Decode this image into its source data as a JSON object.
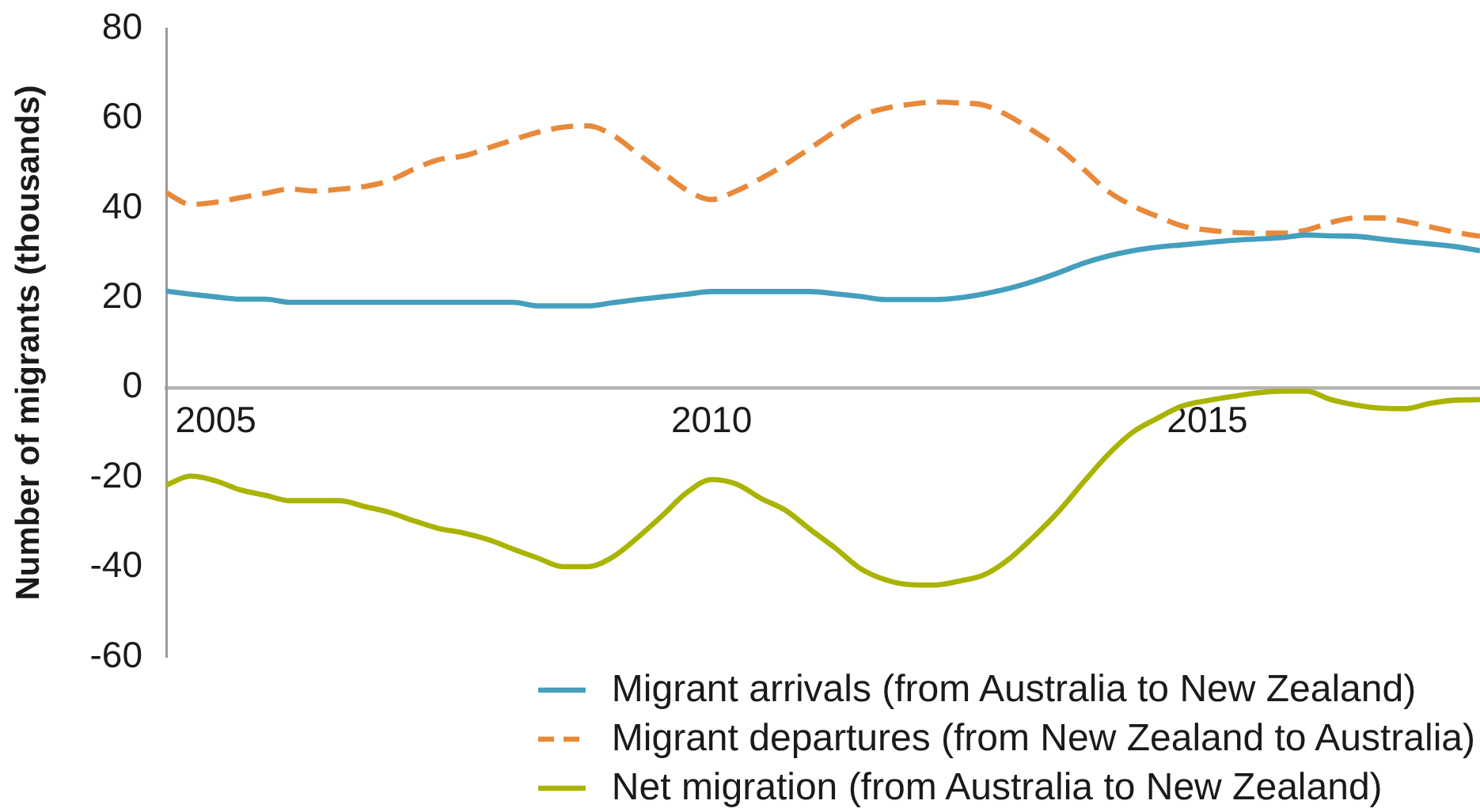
{
  "chart_data": {
    "type": "line",
    "ylabel": "Number of migrants (thousands)",
    "x": [
      2004.5,
      2004.75,
      2005,
      2005.25,
      2005.5,
      2005.75,
      2006,
      2006.25,
      2006.5,
      2006.75,
      2007,
      2007.25,
      2007.5,
      2007.75,
      2008,
      2008.25,
      2008.5,
      2008.75,
      2009,
      2009.25,
      2009.5,
      2009.75,
      2010,
      2010.25,
      2010.5,
      2010.75,
      2011,
      2011.25,
      2011.5,
      2011.75,
      2012,
      2012.25,
      2012.5,
      2012.75,
      2013,
      2013.25,
      2013.5,
      2013.75,
      2014,
      2014.25,
      2014.5,
      2014.75,
      2015,
      2015.25,
      2015.5,
      2015.75,
      2016,
      2016.25,
      2016.5,
      2016.75,
      2017,
      2017.25,
      2017.5,
      2017.75
    ],
    "xlim": [
      2004.5,
      2017.75
    ],
    "xticks": [
      2005,
      2010,
      2015
    ],
    "ylim": [
      -60,
      80
    ],
    "yticks": [
      -60,
      -40,
      -20,
      0,
      20,
      40,
      60,
      80
    ],
    "line_style": "solid",
    "legend": "bottom right",
    "series": [
      {
        "name": "Migrant arrivals (from Australia to New Zealand)",
        "color": "#449fbd",
        "values": [
          21.5,
          20.8,
          20.2,
          19.7,
          19.7,
          19.0,
          19.0,
          19.0,
          19.0,
          19.0,
          19.0,
          19.0,
          19.0,
          19.0,
          19.0,
          18.2,
          18.2,
          18.2,
          18.9,
          19.6,
          20.2,
          20.8,
          21.4,
          21.4,
          21.4,
          21.4,
          21.4,
          20.9,
          20.3,
          19.6,
          19.6,
          19.6,
          20.0,
          20.9,
          22.1,
          23.7,
          25.6,
          27.7,
          29.3,
          30.5,
          31.3,
          31.8,
          32.3,
          32.8,
          33.1,
          33.4,
          34.0,
          33.8,
          33.7,
          33.1,
          32.5,
          32.0,
          31.4,
          30.5
        ]
      },
      {
        "name": "Migrant departures (from New Zealand to Australia)",
        "color": "#e8893a",
        "line_style": "dashed",
        "values": [
          43.4,
          40.8,
          41.3,
          42.3,
          43.3,
          44.2,
          43.8,
          44.2,
          44.8,
          46.1,
          48.7,
          50.8,
          51.6,
          53.4,
          55.2,
          56.9,
          58.0,
          58.3,
          56.3,
          52.2,
          48.1,
          44.0,
          41.9,
          43.8,
          46.6,
          49.8,
          53.4,
          57.1,
          60.5,
          62.2,
          63.1,
          63.6,
          63.4,
          62.9,
          60.5,
          57.1,
          53.4,
          48.7,
          43.7,
          40.5,
          38.1,
          36.0,
          35.1,
          34.6,
          34.4,
          34.4,
          35.1,
          36.8,
          37.8,
          37.8,
          37.0,
          35.8,
          34.6,
          33.7
        ]
      },
      {
        "name": "Net migration (from Australia to New Zealand)",
        "color": "#a9b400",
        "values": [
          -21.7,
          -19.7,
          -20.8,
          -22.8,
          -24.0,
          -25.2,
          -25.2,
          -25.2,
          -26.5,
          -27.8,
          -29.7,
          -31.4,
          -32.4,
          -33.9,
          -36.0,
          -38.0,
          -39.9,
          -39.9,
          -37.8,
          -33.5,
          -28.6,
          -23.4,
          -20.5,
          -21.5,
          -24.7,
          -27.4,
          -31.7,
          -35.8,
          -40.3,
          -42.8,
          -43.9,
          -44.0,
          -43.1,
          -41.7,
          -38.2,
          -33.2,
          -27.6,
          -21.1,
          -14.9,
          -9.9,
          -6.8,
          -4.1,
          -2.9,
          -2.0,
          -1.2,
          -0.8,
          -0.8,
          -2.7,
          -3.9,
          -4.6,
          -4.7,
          -3.5,
          -2.8,
          -2.7
        ]
      }
    ]
  }
}
